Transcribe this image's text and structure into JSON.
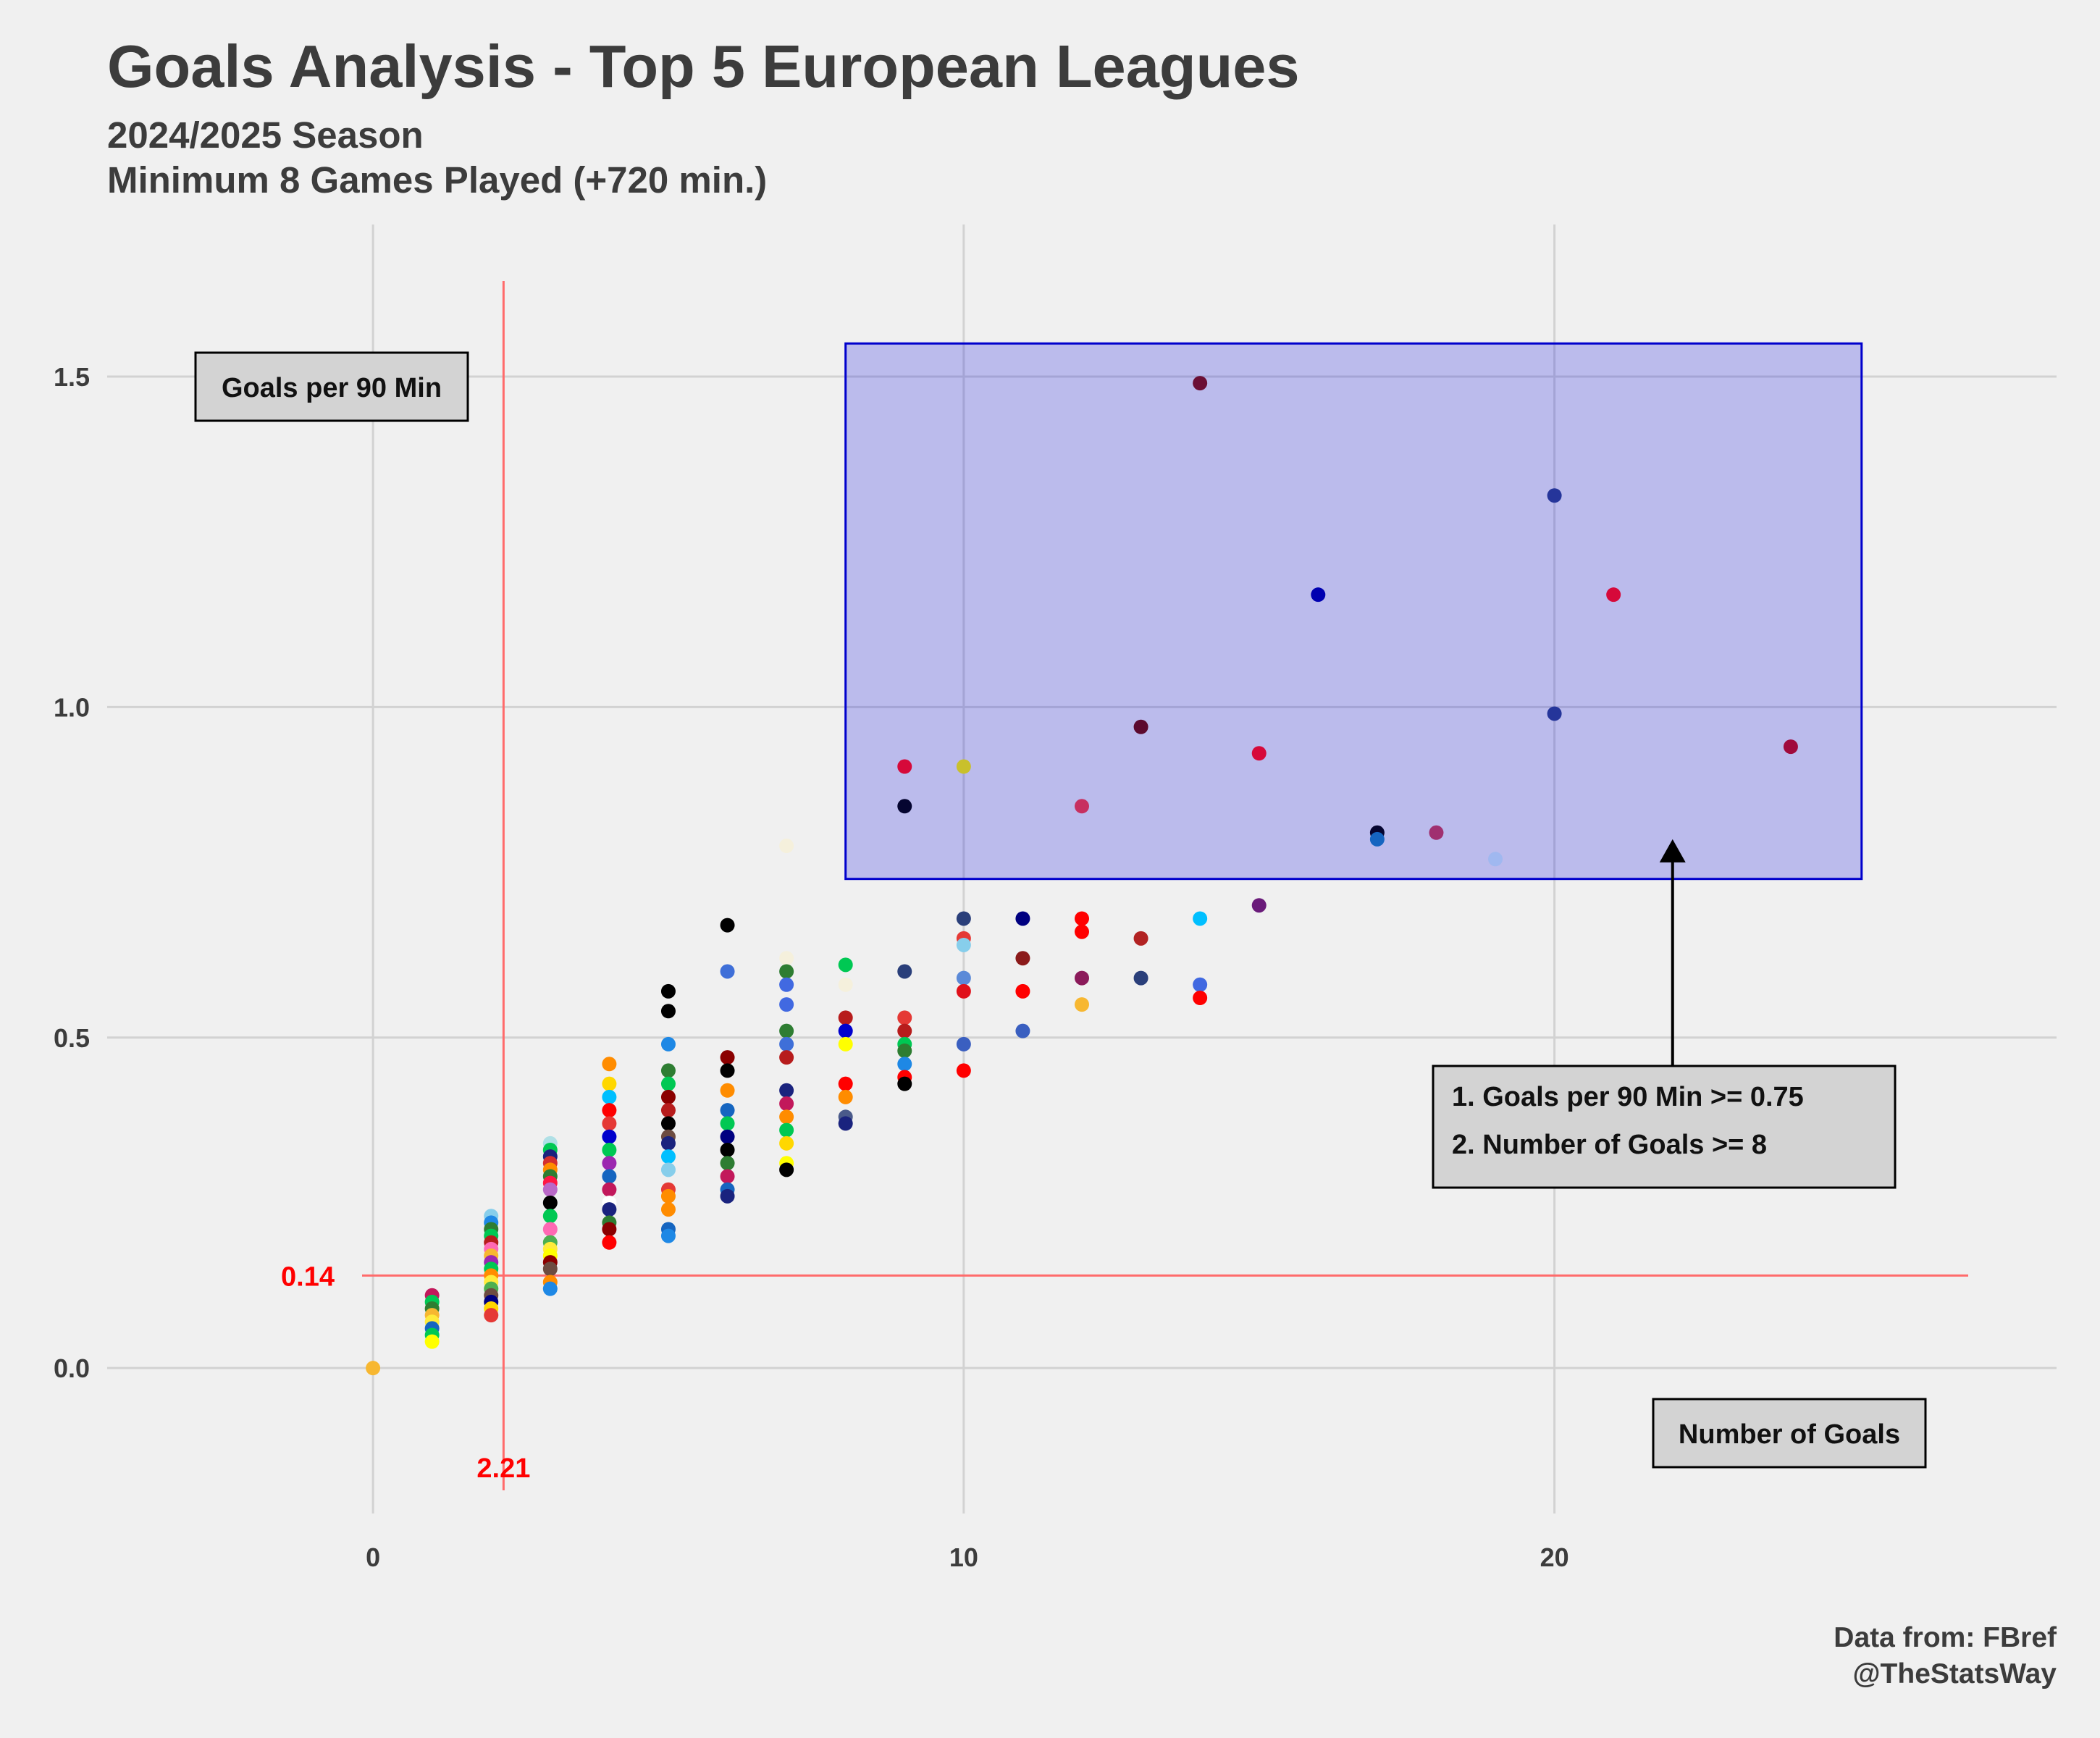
{
  "title": "Goals Analysis - Top 5 European Leagues",
  "subtitle_line1": "2024/2025 Season",
  "subtitle_line2": "Minimum 8 Games Played (+720 min.)",
  "caption_line1": "Data from: FBref",
  "caption_line2": "@TheStatsWay",
  "chart_data": {
    "type": "scatter",
    "title": "Goals Analysis - Top 5 European Leagues",
    "xlabel": "Number of Goals",
    "ylabel": "Goals per 90 Min",
    "xlim": [
      -4.5,
      28.5
    ],
    "ylim": [
      -0.22,
      1.73
    ],
    "x_ticks": [
      0,
      10,
      20
    ],
    "y_ticks": [
      0.0,
      0.5,
      1.0,
      1.5
    ],
    "x_tick_labels": [
      "0",
      "10",
      "20"
    ],
    "y_tick_labels": [
      "0.0",
      "0.5",
      "1.0",
      "1.5"
    ],
    "grid": true,
    "reference_lines": {
      "mean_x": 2.21,
      "mean_x_label": "2.21",
      "mean_y": 0.14,
      "mean_y_label": "0.14",
      "color": "#ff6b6b",
      "label_color": "#ff0000"
    },
    "highlight_region": {
      "x": [
        8,
        25.2
      ],
      "y": [
        0.74,
        1.55
      ],
      "fill": "#0000e0",
      "fill_opacity": 0.22,
      "stroke": "#0000cc"
    },
    "criteria_box": {
      "line1": "1. Goals per 90 Min >= 0.75",
      "line2": "2. Number of Goals >= 8"
    },
    "arrow": {
      "from": [
        22,
        0.53
      ],
      "to": [
        22,
        0.8
      ]
    },
    "points": [
      {
        "x": 0,
        "y": 0.0,
        "c": "#f7b731"
      },
      {
        "x": 1,
        "y": 0.11,
        "c": "#c2185b"
      },
      {
        "x": 1,
        "y": 0.1,
        "c": "#00c853"
      },
      {
        "x": 1,
        "y": 0.09,
        "c": "#2e7d32"
      },
      {
        "x": 1,
        "y": 0.08,
        "c": "#f7b731"
      },
      {
        "x": 1,
        "y": 0.07,
        "c": "#ffeb3b"
      },
      {
        "x": 1,
        "y": 0.06,
        "c": "#1565c0"
      },
      {
        "x": 1,
        "y": 0.05,
        "c": "#00c853"
      },
      {
        "x": 1,
        "y": 0.04,
        "c": "#ffff00"
      },
      {
        "x": 2,
        "y": 0.23,
        "c": "#87ceeb"
      },
      {
        "x": 2,
        "y": 0.22,
        "c": "#1e88e5"
      },
      {
        "x": 2,
        "y": 0.21,
        "c": "#2e7d32"
      },
      {
        "x": 2,
        "y": 0.2,
        "c": "#00c853"
      },
      {
        "x": 2,
        "y": 0.19,
        "c": "#b71c1c"
      },
      {
        "x": 2,
        "y": 0.18,
        "c": "#ff69b4"
      },
      {
        "x": 2,
        "y": 0.17,
        "c": "#f7b731"
      },
      {
        "x": 2,
        "y": 0.16,
        "c": "#9c27b0"
      },
      {
        "x": 2,
        "y": 0.15,
        "c": "#00c853"
      },
      {
        "x": 2,
        "y": 0.14,
        "c": "#ff8c00"
      },
      {
        "x": 2,
        "y": 0.13,
        "c": "#ffeb3b"
      },
      {
        "x": 2,
        "y": 0.12,
        "c": "#4caf50"
      },
      {
        "x": 2,
        "y": 0.11,
        "c": "#6d4c41"
      },
      {
        "x": 2,
        "y": 0.1,
        "c": "#000080"
      },
      {
        "x": 2,
        "y": 0.09,
        "c": "#ffd700"
      },
      {
        "x": 2,
        "y": 0.08,
        "c": "#e53935"
      },
      {
        "x": 3,
        "y": 0.34,
        "c": "#b0e0e6"
      },
      {
        "x": 3,
        "y": 0.33,
        "c": "#00c853"
      },
      {
        "x": 3,
        "y": 0.32,
        "c": "#1a237e"
      },
      {
        "x": 3,
        "y": 0.31,
        "c": "#d32f2f"
      },
      {
        "x": 3,
        "y": 0.3,
        "c": "#ff8c00"
      },
      {
        "x": 3,
        "y": 0.29,
        "c": "#2e7d32"
      },
      {
        "x": 3,
        "y": 0.28,
        "c": "#ff1744"
      },
      {
        "x": 3,
        "y": 0.27,
        "c": "#ba68c8"
      },
      {
        "x": 3,
        "y": 0.25,
        "c": "#000000"
      },
      {
        "x": 3,
        "y": 0.23,
        "c": "#00c853"
      },
      {
        "x": 3,
        "y": 0.21,
        "c": "#ff69b4"
      },
      {
        "x": 3,
        "y": 0.19,
        "c": "#4caf50"
      },
      {
        "x": 3,
        "y": 0.18,
        "c": "#ffeb3b"
      },
      {
        "x": 3,
        "y": 0.17,
        "c": "#ffff00"
      },
      {
        "x": 3,
        "y": 0.16,
        "c": "#8b0000"
      },
      {
        "x": 3,
        "y": 0.15,
        "c": "#6d4c41"
      },
      {
        "x": 3,
        "y": 0.13,
        "c": "#ff8c00"
      },
      {
        "x": 3,
        "y": 0.12,
        "c": "#1e88e5"
      },
      {
        "x": 4,
        "y": 0.46,
        "c": "#ff8c00"
      },
      {
        "x": 4,
        "y": 0.43,
        "c": "#ffd700"
      },
      {
        "x": 4,
        "y": 0.41,
        "c": "#00bfff"
      },
      {
        "x": 4,
        "y": 0.39,
        "c": "#ff0000"
      },
      {
        "x": 4,
        "y": 0.37,
        "c": "#e53935"
      },
      {
        "x": 4,
        "y": 0.35,
        "c": "#0000cd"
      },
      {
        "x": 4,
        "y": 0.33,
        "c": "#00c853"
      },
      {
        "x": 4,
        "y": 0.31,
        "c": "#9c27b0"
      },
      {
        "x": 4,
        "y": 0.29,
        "c": "#1565c0"
      },
      {
        "x": 4,
        "y": 0.27,
        "c": "#c2185b"
      },
      {
        "x": 4,
        "y": 0.25,
        "c": "#ffffff"
      },
      {
        "x": 4,
        "y": 0.24,
        "c": "#1a237e"
      },
      {
        "x": 4,
        "y": 0.22,
        "c": "#2e7d32"
      },
      {
        "x": 4,
        "y": 0.21,
        "c": "#8b0000"
      },
      {
        "x": 4,
        "y": 0.19,
        "c": "#ff0000"
      },
      {
        "x": 5,
        "y": 0.57,
        "c": "#000000"
      },
      {
        "x": 5,
        "y": 0.54,
        "c": "#000000"
      },
      {
        "x": 5,
        "y": 0.49,
        "c": "#1e88e5"
      },
      {
        "x": 5,
        "y": 0.45,
        "c": "#2e7d32"
      },
      {
        "x": 5,
        "y": 0.43,
        "c": "#00c853"
      },
      {
        "x": 5,
        "y": 0.41,
        "c": "#8b0000"
      },
      {
        "x": 5,
        "y": 0.39,
        "c": "#b71c1c"
      },
      {
        "x": 5,
        "y": 0.37,
        "c": "#000000"
      },
      {
        "x": 5,
        "y": 0.35,
        "c": "#6d4c41"
      },
      {
        "x": 5,
        "y": 0.34,
        "c": "#1a237e"
      },
      {
        "x": 5,
        "y": 0.32,
        "c": "#00bfff"
      },
      {
        "x": 5,
        "y": 0.3,
        "c": "#87ceeb"
      },
      {
        "x": 5,
        "y": 0.27,
        "c": "#e53935"
      },
      {
        "x": 5,
        "y": 0.26,
        "c": "#ff8c00"
      },
      {
        "x": 5,
        "y": 0.24,
        "c": "#ff8c00"
      },
      {
        "x": 5,
        "y": 0.21,
        "c": "#1565c0"
      },
      {
        "x": 5,
        "y": 0.2,
        "c": "#1e88e5"
      },
      {
        "x": 6,
        "y": 0.67,
        "c": "#000000"
      },
      {
        "x": 6,
        "y": 0.6,
        "c": "#3f6fd8"
      },
      {
        "x": 6,
        "y": 0.47,
        "c": "#8b0000"
      },
      {
        "x": 6,
        "y": 0.45,
        "c": "#000000"
      },
      {
        "x": 6,
        "y": 0.42,
        "c": "#ff8c00"
      },
      {
        "x": 6,
        "y": 0.39,
        "c": "#1565c0"
      },
      {
        "x": 6,
        "y": 0.37,
        "c": "#00c853"
      },
      {
        "x": 6,
        "y": 0.35,
        "c": "#000080"
      },
      {
        "x": 6,
        "y": 0.33,
        "c": "#000000"
      },
      {
        "x": 6,
        "y": 0.31,
        "c": "#2e7d32"
      },
      {
        "x": 6,
        "y": 0.29,
        "c": "#c2185b"
      },
      {
        "x": 6,
        "y": 0.27,
        "c": "#1565c0"
      },
      {
        "x": 6,
        "y": 0.26,
        "c": "#1a237e"
      },
      {
        "x": 7,
        "y": 0.79,
        "c": "#f5f0dc"
      },
      {
        "x": 7,
        "y": 0.62,
        "c": "#f5f0dc"
      },
      {
        "x": 7,
        "y": 0.6,
        "c": "#2e7d32"
      },
      {
        "x": 7,
        "y": 0.58,
        "c": "#4169e1"
      },
      {
        "x": 7,
        "y": 0.55,
        "c": "#4169e1"
      },
      {
        "x": 7,
        "y": 0.51,
        "c": "#2e7d32"
      },
      {
        "x": 7,
        "y": 0.49,
        "c": "#3f6fd8"
      },
      {
        "x": 7,
        "y": 0.47,
        "c": "#b71c1c"
      },
      {
        "x": 7,
        "y": 0.42,
        "c": "#1a237e"
      },
      {
        "x": 7,
        "y": 0.4,
        "c": "#c2185b"
      },
      {
        "x": 7,
        "y": 0.38,
        "c": "#ff8c00"
      },
      {
        "x": 7,
        "y": 0.36,
        "c": "#00c853"
      },
      {
        "x": 7,
        "y": 0.34,
        "c": "#ffd700"
      },
      {
        "x": 7,
        "y": 0.31,
        "c": "#ffff00"
      },
      {
        "x": 7,
        "y": 0.3,
        "c": "#000000"
      },
      {
        "x": 8,
        "y": 0.61,
        "c": "#00c853"
      },
      {
        "x": 8,
        "y": 0.58,
        "c": "#f5f0dc"
      },
      {
        "x": 8,
        "y": 0.53,
        "c": "#b71c1c"
      },
      {
        "x": 8,
        "y": 0.51,
        "c": "#0000cd"
      },
      {
        "x": 8,
        "y": 0.49,
        "c": "#ffff00"
      },
      {
        "x": 8,
        "y": 0.43,
        "c": "#ff0000"
      },
      {
        "x": 8,
        "y": 0.41,
        "c": "#ff8c00"
      },
      {
        "x": 8,
        "y": 0.38,
        "c": "#4a5a8a"
      },
      {
        "x": 8,
        "y": 0.37,
        "c": "#1a237e"
      },
      {
        "x": 9,
        "y": 0.91,
        "c": "#d6093a"
      },
      {
        "x": 9,
        "y": 0.85,
        "c": "#050530"
      },
      {
        "x": 9,
        "y": 0.6,
        "c": "#2a3f7a"
      },
      {
        "x": 9,
        "y": 0.53,
        "c": "#e53935"
      },
      {
        "x": 9,
        "y": 0.51,
        "c": "#b71c1c"
      },
      {
        "x": 9,
        "y": 0.49,
        "c": "#00c853"
      },
      {
        "x": 9,
        "y": 0.48,
        "c": "#2e7d32"
      },
      {
        "x": 9,
        "y": 0.46,
        "c": "#1e88e5"
      },
      {
        "x": 9,
        "y": 0.44,
        "c": "#ff0000"
      },
      {
        "x": 9,
        "y": 0.43,
        "c": "#000000"
      },
      {
        "x": 10,
        "y": 0.91,
        "c": "#c9c02c"
      },
      {
        "x": 10,
        "y": 0.68,
        "c": "#2a3f7a"
      },
      {
        "x": 10,
        "y": 0.65,
        "c": "#e53935"
      },
      {
        "x": 10,
        "y": 0.64,
        "c": "#87ceeb"
      },
      {
        "x": 10,
        "y": 0.59,
        "c": "#5b8ad8"
      },
      {
        "x": 10,
        "y": 0.57,
        "c": "#e0101a"
      },
      {
        "x": 10,
        "y": 0.49,
        "c": "#3a5fc0"
      },
      {
        "x": 10,
        "y": 0.45,
        "c": "#ff0000"
      },
      {
        "x": 11,
        "y": 0.68,
        "c": "#000080"
      },
      {
        "x": 11,
        "y": 0.62,
        "c": "#8b1a1a"
      },
      {
        "x": 11,
        "y": 0.57,
        "c": "#ff0000"
      },
      {
        "x": 11,
        "y": 0.51,
        "c": "#3a5fc0"
      },
      {
        "x": 12,
        "y": 0.85,
        "c": "#c73060"
      },
      {
        "x": 12,
        "y": 0.68,
        "c": "#ff0000"
      },
      {
        "x": 12,
        "y": 0.66,
        "c": "#ff0000"
      },
      {
        "x": 12,
        "y": 0.59,
        "c": "#8b1a5a"
      },
      {
        "x": 12,
        "y": 0.55,
        "c": "#f7b731"
      },
      {
        "x": 13,
        "y": 0.97,
        "c": "#5c0a2e"
      },
      {
        "x": 13,
        "y": 0.65,
        "c": "#b22222"
      },
      {
        "x": 13,
        "y": 0.59,
        "c": "#2a3f7a"
      },
      {
        "x": 14,
        "y": 1.49,
        "c": "#6b0f35"
      },
      {
        "x": 14,
        "y": 0.68,
        "c": "#00bfff"
      },
      {
        "x": 14,
        "y": 0.58,
        "c": "#4169e1"
      },
      {
        "x": 14,
        "y": 0.56,
        "c": "#ff0000"
      },
      {
        "x": 15,
        "y": 0.93,
        "c": "#d6093a"
      },
      {
        "x": 15,
        "y": 0.7,
        "c": "#6a1b7a"
      },
      {
        "x": 16,
        "y": 1.17,
        "c": "#0000b0"
      },
      {
        "x": 17,
        "y": 0.81,
        "c": "#050530"
      },
      {
        "x": 17,
        "y": 0.8,
        "c": "#1565c0"
      },
      {
        "x": 18,
        "y": 0.81,
        "c": "#a03070"
      },
      {
        "x": 19,
        "y": 0.77,
        "c": "#a0b8f0"
      },
      {
        "x": 20,
        "y": 1.32,
        "c": "#25359a"
      },
      {
        "x": 20,
        "y": 0.99,
        "c": "#25359a"
      },
      {
        "x": 21,
        "y": 1.17,
        "c": "#d6093a"
      },
      {
        "x": 24,
        "y": 0.94,
        "c": "#a00a3c"
      }
    ]
  },
  "colors": {
    "background": "#f0f0f0",
    "grid": "#d2d2d2",
    "text": "#3c3c3c",
    "label_box": "#d3d3d3"
  }
}
